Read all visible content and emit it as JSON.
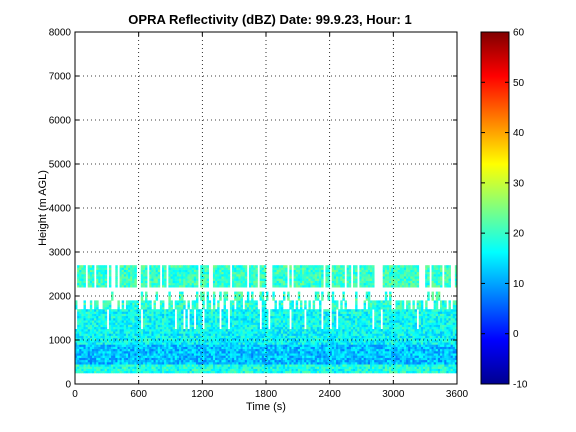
{
  "chart_data": {
    "type": "heatmap",
    "title": "OPRA Reflectivity (dBZ)  Date: 99.9.23, Hour: 1",
    "xlabel": "Time (s)",
    "ylabel": "Height (m AGL)",
    "xlim": [
      0,
      3600
    ],
    "ylim": [
      0,
      8000
    ],
    "xticks": [
      0,
      600,
      1200,
      1800,
      2400,
      3000,
      3600
    ],
    "yticks": [
      0,
      1000,
      2000,
      3000,
      4000,
      5000,
      6000,
      7000,
      8000
    ],
    "grid": true,
    "colorbar": {
      "colormap": "jet",
      "clim": [
        -10,
        60
      ],
      "ticks": [
        -10,
        0,
        10,
        20,
        30,
        40,
        50,
        60
      ]
    },
    "layers": [
      {
        "base_m": 250,
        "top_m": 450,
        "coverage": 1.0,
        "dbz_mean": 18
      },
      {
        "base_m": 450,
        "top_m": 900,
        "coverage": 1.0,
        "dbz_mean": 12
      },
      {
        "base_m": 900,
        "top_m": 1250,
        "coverage": 1.0,
        "dbz_mean": 16
      },
      {
        "base_m": 1250,
        "top_m": 1700,
        "coverage": 0.9,
        "dbz_mean": 17
      },
      {
        "base_m": 1700,
        "top_m": 1900,
        "coverage": 0.55,
        "dbz_mean": 19
      },
      {
        "base_m": 1900,
        "top_m": 2100,
        "coverage": 0.2,
        "dbz_mean": 20
      },
      {
        "base_m": 2200,
        "top_m": 2700,
        "coverage": 0.75,
        "dbz_mean": 20
      }
    ]
  }
}
